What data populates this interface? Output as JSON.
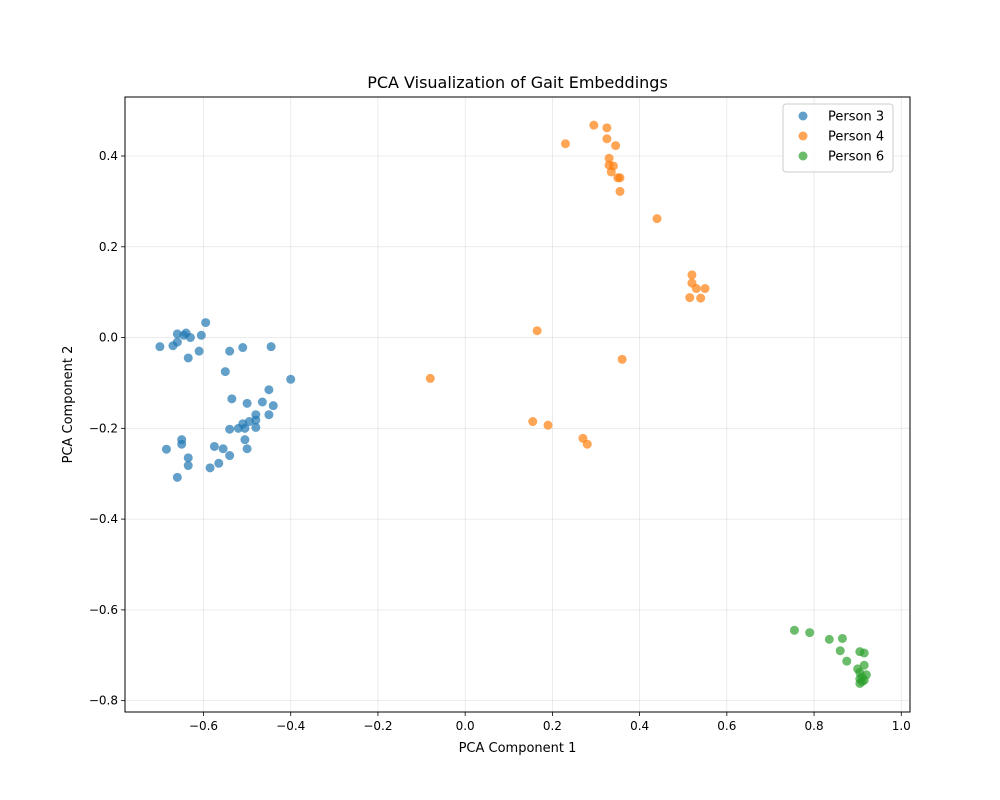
{
  "chart_data": {
    "type": "scatter",
    "title": "PCA Visualization of Gait Embeddings",
    "xlabel": "PCA Component 1",
    "ylabel": "PCA Component 2",
    "xlim": [
      -0.78,
      1.02
    ],
    "ylim": [
      -0.825,
      0.53
    ],
    "xticks": [
      -0.6,
      -0.4,
      -0.2,
      0.0,
      0.2,
      0.4,
      0.6,
      0.8,
      1.0
    ],
    "yticks": [
      -0.8,
      -0.6,
      -0.4,
      -0.2,
      0.0,
      0.2,
      0.4
    ],
    "grid": true,
    "legend_position": "top-right",
    "series": [
      {
        "name": "Person 3",
        "color": "#1f77b4",
        "points": [
          [
            -0.7,
            -0.02
          ],
          [
            -0.67,
            -0.018
          ],
          [
            -0.66,
            -0.01
          ],
          [
            -0.66,
            0.008
          ],
          [
            -0.645,
            0.005
          ],
          [
            -0.64,
            0.01
          ],
          [
            -0.63,
            0.0
          ],
          [
            -0.635,
            -0.045
          ],
          [
            -0.61,
            -0.03
          ],
          [
            -0.605,
            0.005
          ],
          [
            -0.595,
            0.033
          ],
          [
            -0.55,
            -0.075
          ],
          [
            -0.54,
            -0.03
          ],
          [
            -0.51,
            -0.022
          ],
          [
            -0.445,
            -0.02
          ],
          [
            -0.45,
            -0.115
          ],
          [
            -0.4,
            -0.092
          ],
          [
            -0.535,
            -0.135
          ],
          [
            -0.5,
            -0.145
          ],
          [
            -0.465,
            -0.142
          ],
          [
            -0.44,
            -0.15
          ],
          [
            -0.48,
            -0.17
          ],
          [
            -0.45,
            -0.17
          ],
          [
            -0.495,
            -0.185
          ],
          [
            -0.48,
            -0.182
          ],
          [
            -0.51,
            -0.19
          ],
          [
            -0.52,
            -0.2
          ],
          [
            -0.505,
            -0.2
          ],
          [
            -0.54,
            -0.202
          ],
          [
            -0.48,
            -0.198
          ],
          [
            -0.505,
            -0.225
          ],
          [
            -0.5,
            -0.245
          ],
          [
            -0.555,
            -0.245
          ],
          [
            -0.575,
            -0.24
          ],
          [
            -0.54,
            -0.26
          ],
          [
            -0.65,
            -0.225
          ],
          [
            -0.65,
            -0.235
          ],
          [
            -0.685,
            -0.246
          ],
          [
            -0.635,
            -0.265
          ],
          [
            -0.635,
            -0.282
          ],
          [
            -0.585,
            -0.287
          ],
          [
            -0.565,
            -0.277
          ],
          [
            -0.66,
            -0.308
          ]
        ]
      },
      {
        "name": "Person 4",
        "color": "#ff7f0e",
        "points": [
          [
            0.23,
            0.427
          ],
          [
            0.295,
            0.468
          ],
          [
            0.325,
            0.462
          ],
          [
            0.325,
            0.438
          ],
          [
            0.345,
            0.423
          ],
          [
            0.33,
            0.395
          ],
          [
            0.33,
            0.38
          ],
          [
            0.34,
            0.378
          ],
          [
            0.335,
            0.365
          ],
          [
            0.35,
            0.352
          ],
          [
            0.355,
            0.352
          ],
          [
            0.355,
            0.322
          ],
          [
            0.44,
            0.262
          ],
          [
            0.52,
            0.138
          ],
          [
            0.52,
            0.12
          ],
          [
            0.53,
            0.108
          ],
          [
            0.55,
            0.108
          ],
          [
            0.515,
            0.088
          ],
          [
            0.54,
            0.087
          ],
          [
            0.165,
            0.015
          ],
          [
            0.36,
            -0.048
          ],
          [
            -0.08,
            -0.09
          ],
          [
            0.155,
            -0.185
          ],
          [
            0.19,
            -0.193
          ],
          [
            0.27,
            -0.222
          ],
          [
            0.28,
            -0.235
          ]
        ]
      },
      {
        "name": "Person 6",
        "color": "#2ca02c",
        "points": [
          [
            0.755,
            -0.645
          ],
          [
            0.79,
            -0.65
          ],
          [
            0.835,
            -0.665
          ],
          [
            0.865,
            -0.663
          ],
          [
            0.86,
            -0.69
          ],
          [
            0.905,
            -0.692
          ],
          [
            0.915,
            -0.695
          ],
          [
            0.875,
            -0.713
          ],
          [
            0.915,
            -0.722
          ],
          [
            0.9,
            -0.73
          ],
          [
            0.905,
            -0.738
          ],
          [
            0.92,
            -0.743
          ],
          [
            0.91,
            -0.748
          ],
          [
            0.905,
            -0.752
          ],
          [
            0.915,
            -0.755
          ],
          [
            0.91,
            -0.758
          ],
          [
            0.905,
            -0.762
          ]
        ]
      }
    ]
  }
}
